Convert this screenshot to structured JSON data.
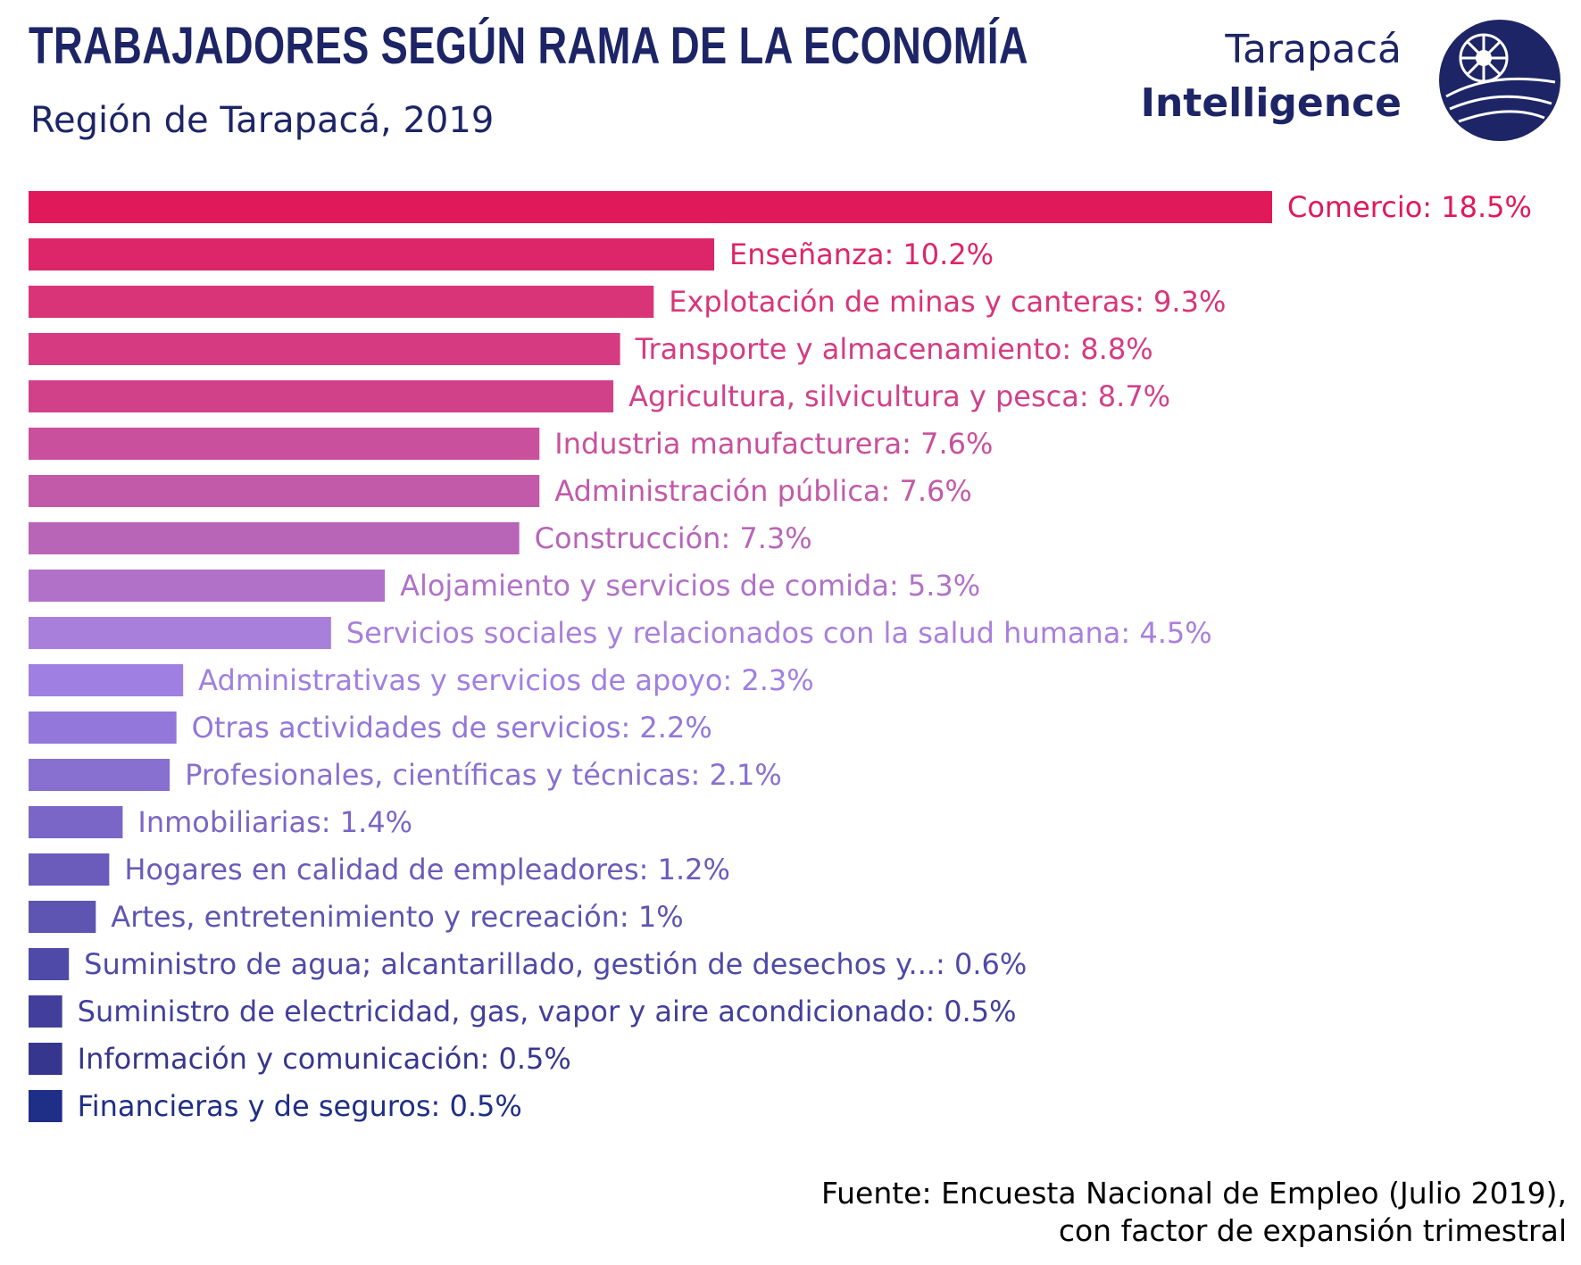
{
  "header": {
    "title": "TRABAJADORES SEGÚN RAMA DE LA ECONOMÍA",
    "subtitle": "Región de Tarapacá, 2019"
  },
  "logo": {
    "line1": "Tarapacá",
    "line2": "Intelligence",
    "color": "#1d2566"
  },
  "source": {
    "line1": "Fuente: Encuesta Nacional de Empleo (Julio 2019),",
    "line2": "con factor de expansión trimestral"
  },
  "chart_data": {
    "type": "bar",
    "orientation": "horizontal",
    "unit": "%",
    "categories": [
      "Comercio",
      "Enseñanza",
      "Explotación de minas y canteras",
      "Transporte y almacenamiento",
      "Agricultura, silvicultura y pesca",
      "Industria manufacturera",
      "Administración pública",
      "Construcción",
      "Alojamiento y servicios de comida",
      "Servicios sociales y relacionados con la salud humana",
      "Administrativas y servicios de apoyo",
      "Otras actividades de servicios",
      "Profesionales, científicas y técnicas",
      "Inmobiliarias",
      "Hogares en calidad de empleadores",
      "Artes, entretenimiento y recreación",
      "Suministro de agua; alcantarillado, gestión de desechos y...",
      "Suministro de electricidad, gas, vapor y aire acondicionado",
      "Información y comunicación",
      "Financieras y de seguros"
    ],
    "values": [
      18.5,
      10.2,
      9.3,
      8.8,
      8.7,
      7.6,
      7.6,
      7.3,
      5.3,
      4.5,
      2.3,
      2.2,
      2.1,
      1.4,
      1.2,
      1,
      0.6,
      0.5,
      0.5,
      0.5
    ],
    "labels": [
      "Comercio: 18.5%",
      "Enseñanza: 10.2%",
      "Explotación de minas y canteras: 9.3%",
      "Transporte y almacenamiento: 8.8%",
      "Agricultura, silvicultura y pesca: 8.7%",
      "Industria manufacturera: 7.6%",
      "Administración pública: 7.6%",
      "Construcción: 7.3%",
      "Alojamiento y servicios de comida: 5.3%",
      "Servicios sociales y relacionados con la salud humana: 4.5%",
      "Administrativas y servicios de apoyo: 2.3%",
      "Otras actividades de servicios: 2.2%",
      "Profesionales, científicas y técnicas: 2.1%",
      "Inmobiliarias: 1.4%",
      "Hogares en calidad de empleadores: 1.2%",
      "Artes, entretenimiento y recreación: 1%",
      "Suministro de agua; alcantarillado, gestión de desechos y...: 0.6%",
      "Suministro de electricidad, gas, vapor y aire acondicionado: 0.5%",
      "Información y comunicación: 0.5%",
      "Financieras y de seguros: 0.5%"
    ],
    "colors": [
      "#e0195a",
      "#dd2569",
      "#da3478",
      "#d63b82",
      "#d1418a",
      "#c9509c",
      "#c25aa9",
      "#b865b8",
      "#b171c9",
      "#a97fdc",
      "#a07fe3",
      "#9377da",
      "#8870d0",
      "#7a66c6",
      "#6b5bbb",
      "#5e54b2",
      "#4f4aa8",
      "#423f9c",
      "#37368f",
      "#1f2e87"
    ],
    "xlim": [
      0,
      18.5
    ],
    "grid": false,
    "legend": "none"
  }
}
